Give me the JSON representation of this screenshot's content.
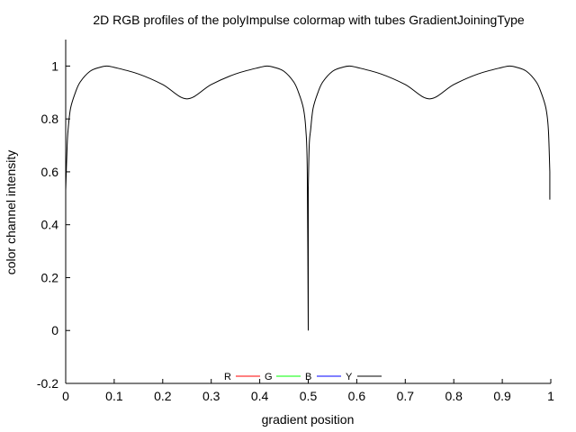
{
  "chart_data": {
    "type": "line",
    "title": "2D RGB profiles of the polyImpulse colormap with tubes GradientJoiningType",
    "xlabel": "gradient position",
    "ylabel": "color channel intensity",
    "xlim": [
      0,
      1
    ],
    "ylim": [
      -0.2,
      1.1
    ],
    "xticks": [
      "0",
      "0.1",
      "0.2",
      "0.3",
      "0.4",
      "0.5",
      "0.6",
      "0.7",
      "0.8",
      "0.9",
      "1"
    ],
    "yticks": [
      "-0.2",
      "0",
      "0.2",
      "0.4",
      "0.6",
      "0.8",
      "1"
    ],
    "legend_position": "bottom-center",
    "series": [
      {
        "name": "R",
        "color": "#ff0000",
        "x": [],
        "y": []
      },
      {
        "name": "G",
        "color": "#00ff00",
        "x": [],
        "y": []
      },
      {
        "name": "B",
        "color": "#0000ff",
        "x": [],
        "y": []
      },
      {
        "name": "Y",
        "color": "#000000",
        "x": [
          0.0,
          0.0,
          0.003,
          0.005,
          0.01,
          0.02,
          0.03,
          0.05,
          0.07,
          0.085,
          0.1,
          0.15,
          0.2,
          0.25,
          0.3,
          0.35,
          0.4,
          0.415,
          0.43,
          0.45,
          0.47,
          0.48,
          0.49,
          0.495,
          0.498,
          0.5,
          0.5,
          0.5,
          0.502,
          0.505,
          0.51,
          0.52,
          0.53,
          0.55,
          0.57,
          0.585,
          0.6,
          0.65,
          0.7,
          0.75,
          0.8,
          0.85,
          0.9,
          0.915,
          0.93,
          0.95,
          0.97,
          0.98,
          0.99,
          0.995,
          0.998,
          0.998
        ],
        "y": [
          0.25,
          0.53,
          0.7,
          0.76,
          0.84,
          0.9,
          0.94,
          0.98,
          0.995,
          1.0,
          0.995,
          0.97,
          0.93,
          0.876,
          0.93,
          0.97,
          0.995,
          1.0,
          0.995,
          0.98,
          0.94,
          0.9,
          0.84,
          0.76,
          0.6,
          0.0,
          0.25,
          0.53,
          0.7,
          0.76,
          0.84,
          0.9,
          0.94,
          0.98,
          0.995,
          1.0,
          0.995,
          0.97,
          0.93,
          0.876,
          0.93,
          0.97,
          0.995,
          1.0,
          0.995,
          0.98,
          0.94,
          0.9,
          0.84,
          0.76,
          0.6,
          0.495
        ]
      }
    ]
  }
}
